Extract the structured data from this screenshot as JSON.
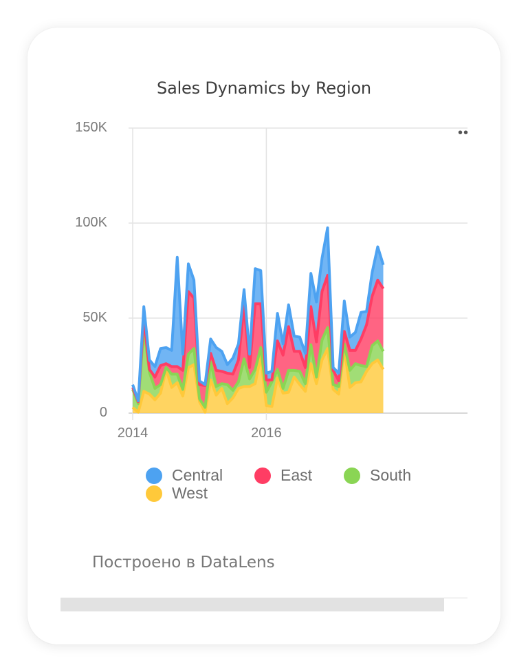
{
  "chart_data": {
    "type": "area",
    "stacked": true,
    "title": "Sales Dynamics by Region",
    "xlabel": "",
    "ylabel": "",
    "ylim": [
      0,
      150000
    ],
    "y_ticks": [
      0,
      50000,
      100000,
      150000
    ],
    "y_tick_labels": [
      "0",
      "50K",
      "100K",
      "150K"
    ],
    "x_ticks": [
      "2014",
      "2016"
    ],
    "x_start": "2014-01",
    "legend_position": "bottom",
    "grid": true,
    "series": [
      {
        "name": "West",
        "color": "#ffc93a",
        "values": [
          3000,
          500,
          11500,
          10000,
          7000,
          10500,
          23000,
          13500,
          16000,
          9000,
          24000,
          25500,
          6000,
          500,
          17500,
          9500,
          13000,
          5000,
          8000,
          13000,
          14000,
          14000,
          15500,
          30000,
          4000,
          3500,
          18500,
          10500,
          11000,
          19000,
          15000,
          11500,
          26000,
          15500,
          28000,
          34000,
          12500,
          10000,
          34000,
          13500,
          16000,
          16500,
          22000,
          26000,
          28000,
          23000
        ]
      },
      {
        "name": "South",
        "color": "#8ad554",
        "values": [
          9500,
          4500,
          33500,
          11500,
          6000,
          4500,
          1000,
          7000,
          4500,
          3500,
          7000,
          8500,
          1500,
          2500,
          9500,
          4500,
          2500,
          10000,
          4000,
          3500,
          14500,
          4000,
          7500,
          4500,
          7000,
          13000,
          4500,
          2500,
          11500,
          3500,
          7000,
          4000,
          10000,
          3500,
          10500,
          11000,
          2500,
          4000,
          2500,
          9000,
          10000,
          8500,
          2500,
          9500,
          10000,
          9500
        ]
      },
      {
        "name": "East",
        "color": "#ff3d64",
        "values": [
          1000,
          1000,
          5500,
          1500,
          6000,
          10000,
          2000,
          4000,
          4000,
          10000,
          33000,
          26500,
          7500,
          11500,
          4500,
          8500,
          6500,
          6000,
          8500,
          11500,
          28000,
          6000,
          34500,
          23000,
          6500,
          1000,
          15000,
          17500,
          23000,
          10000,
          10500,
          8500,
          20000,
          18500,
          25500,
          27500,
          7500,
          3000,
          6500,
          10500,
          7000,
          14000,
          22000,
          26000,
          32000,
          33000
        ]
      },
      {
        "name": "Central",
        "color": "#4da2f1",
        "values": [
          1500,
          500,
          5500,
          5000,
          5500,
          9000,
          8500,
          8500,
          57500,
          8500,
          14500,
          9500,
          2000,
          500,
          7500,
          12000,
          10500,
          4500,
          8500,
          8500,
          8500,
          7000,
          18500,
          17500,
          3500,
          4500,
          14500,
          6000,
          11500,
          8000,
          7500,
          7500,
          17500,
          21000,
          17500,
          25000,
          1500,
          4000,
          16000,
          7000,
          9500,
          14000,
          7000,
          12500,
          17500,
          12500
        ]
      }
    ],
    "x_end_partial": 100000
  },
  "footer": {
    "text": "Построено в DataLens"
  },
  "menu": {
    "icon": "more-dots-icon"
  }
}
